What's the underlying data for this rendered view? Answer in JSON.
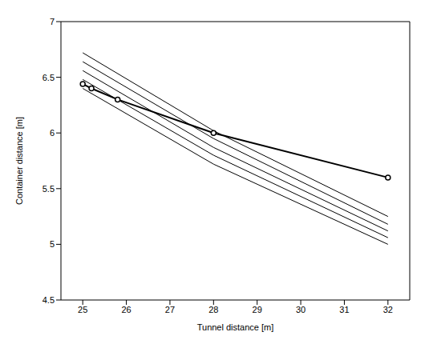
{
  "chart_data": {
    "type": "line",
    "x_label": "Tunnel distance [m]",
    "y_label": "Container distance [m]",
    "xlim": [
      24.5,
      32.5
    ],
    "xticks": [
      25,
      26,
      27,
      28,
      29,
      30,
      31,
      32
    ],
    "ylim": [
      4.5,
      7
    ],
    "yticks": [
      4.5,
      5,
      5.5,
      6,
      6.5,
      7
    ],
    "grid": true,
    "series": [
      {
        "color": "#000000",
        "marker": "none",
        "line_style": "solid",
        "x": [
          25,
          28,
          32
        ],
        "values": [
          6.72,
          6.02,
          5.25
        ]
      },
      {
        "color": "#000000",
        "marker": "none",
        "line_style": "solid",
        "x": [
          25,
          28,
          32
        ],
        "values": [
          6.64,
          5.95,
          5.18
        ]
      },
      {
        "color": "#000000",
        "marker": "none",
        "line_style": "solid",
        "x": [
          25,
          28,
          32
        ],
        "values": [
          6.56,
          5.87,
          5.12
        ]
      },
      {
        "color": "#000000",
        "marker": "none",
        "line_style": "solid",
        "x": [
          25,
          28,
          32
        ],
        "values": [
          6.48,
          5.8,
          5.06
        ]
      },
      {
        "color": "#000000",
        "marker": "none",
        "line_style": "solid",
        "x": [
          25,
          28,
          32
        ],
        "values": [
          6.4,
          5.72,
          5.0
        ]
      },
      {
        "color": "#000000",
        "marker": "circle",
        "line_style": "solid",
        "x": [
          25,
          25.2,
          25.8,
          28,
          32
        ],
        "values": [
          6.44,
          6.4,
          6.3,
          6.0,
          5.6
        ]
      }
    ]
  }
}
